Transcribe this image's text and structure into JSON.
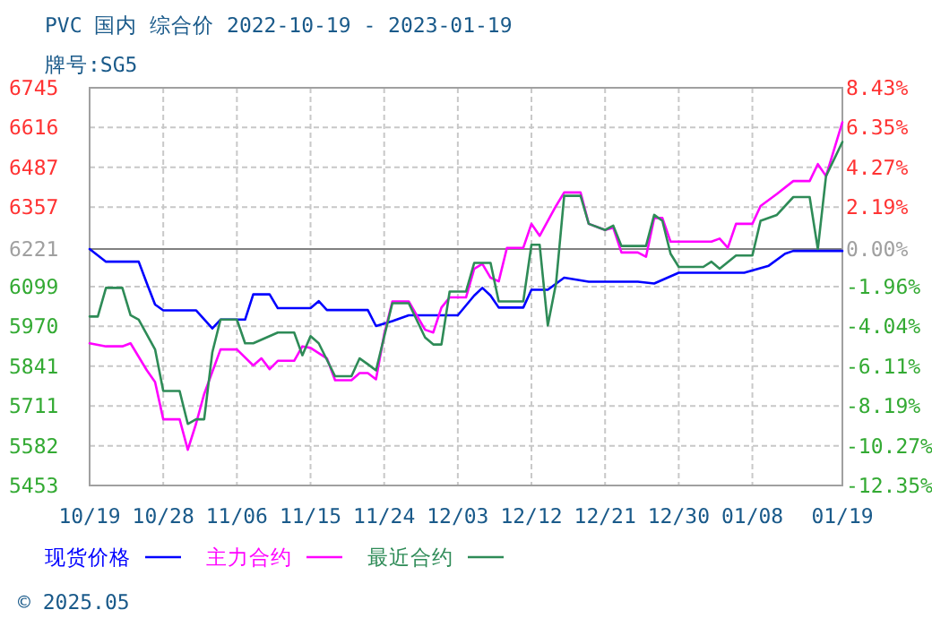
{
  "chart_data": {
    "type": "line",
    "title": "PVC 国内 综合价 2022-10-19 - 2023-01-19",
    "subtitle": "牌号:SG5",
    "annotations": [
      "© 2025.05"
    ],
    "xlim": [
      "2022-10-19",
      "2023-01-19"
    ],
    "xticks": [
      {
        "value": "2022-10-19",
        "label": "10/19"
      },
      {
        "value": "2022-10-28",
        "label": "10/28"
      },
      {
        "value": "2022-11-06",
        "label": "11/06"
      },
      {
        "value": "2022-11-15",
        "label": "11/15"
      },
      {
        "value": "2022-11-24",
        "label": "11/24"
      },
      {
        "value": "2022-12-03",
        "label": "12/03"
      },
      {
        "value": "2022-12-12",
        "label": "12/12"
      },
      {
        "value": "2022-12-21",
        "label": "12/21"
      },
      {
        "value": "2022-12-30",
        "label": "12/30"
      },
      {
        "value": "2023-01-08",
        "label": "01/08"
      },
      {
        "value": "2023-01-19",
        "label": "01/19"
      }
    ],
    "ylim": [
      5453,
      6745
    ],
    "yticks": [
      5453,
      5582,
      5711,
      5841,
      5970,
      6099,
      6221,
      6357,
      6487,
      6616,
      6745
    ],
    "y2lim": [
      -12.35,
      8.43
    ],
    "y2ticks": [
      {
        "value": -12.35,
        "label": "-12.35%"
      },
      {
        "value": -10.27,
        "label": "-10.27%"
      },
      {
        "value": -8.19,
        "label": "-8.19%"
      },
      {
        "value": -6.11,
        "label": "-6.11%"
      },
      {
        "value": -4.04,
        "label": "-4.04%"
      },
      {
        "value": -1.96,
        "label": "-1.96%"
      },
      {
        "value": 0,
        "label": "0.00%"
      },
      {
        "value": 2.19,
        "label": "2.19%"
      },
      {
        "value": 4.27,
        "label": "4.27%"
      },
      {
        "value": 6.35,
        "label": "6.35%"
      },
      {
        "value": 8.43,
        "label": "8.43%"
      }
    ],
    "grid": true,
    "legend": "bottom",
    "ref_lines": [
      {
        "axis": "y",
        "value": 6221,
        "color": "#808080"
      }
    ],
    "series": [
      {
        "name": "现货价格",
        "color": "#0000ff",
        "x": [
          "2022-10-19",
          "2022-10-21",
          "2022-10-25",
          "2022-10-26",
          "2022-10-27",
          "2022-10-28",
          "2022-11-01",
          "2022-11-03",
          "2022-11-04",
          "2022-11-07",
          "2022-11-08",
          "2022-11-10",
          "2022-11-11",
          "2022-11-15",
          "2022-11-16",
          "2022-11-17",
          "2022-11-22",
          "2022-11-23",
          "2022-11-25",
          "2022-11-27",
          "2022-12-03",
          "2022-12-05",
          "2022-12-06",
          "2022-12-07",
          "2022-12-08",
          "2022-12-11",
          "2022-12-12",
          "2022-12-14",
          "2022-12-16",
          "2022-12-19",
          "2022-12-25",
          "2022-12-27",
          "2022-12-30",
          "2023-01-07",
          "2023-01-10",
          "2023-01-12",
          "2023-01-13",
          "2023-01-19"
        ],
        "values": [
          6221,
          6180,
          6180,
          6109,
          6041,
          6022,
          6022,
          5963,
          5992,
          5992,
          6074,
          6074,
          6029,
          6029,
          6052,
          6023,
          6023,
          5971,
          5987,
          6006,
          6006,
          6070,
          6095,
          6070,
          6031,
          6031,
          6089,
          6089,
          6128,
          6115,
          6115,
          6109,
          6144,
          6144,
          6167,
          6206,
          6215,
          6215
        ]
      },
      {
        "name": "主力合约",
        "color": "#ff00ff",
        "x": [
          "2022-10-19",
          "2022-10-21",
          "2022-10-23",
          "2022-10-24",
          "2022-10-26",
          "2022-10-27",
          "2022-10-28",
          "2022-10-30",
          "2022-10-31",
          "2022-11-01",
          "2022-11-02",
          "2022-11-04",
          "2022-11-06",
          "2022-11-08",
          "2022-11-09",
          "2022-11-10",
          "2022-11-11",
          "2022-11-13",
          "2022-11-14",
          "2022-11-15",
          "2022-11-17",
          "2022-11-18",
          "2022-11-20",
          "2022-11-21",
          "2022-11-22",
          "2022-11-23",
          "2022-11-24",
          "2022-11-25",
          "2022-11-27",
          "2022-11-29",
          "2022-11-30",
          "2022-12-01",
          "2022-12-02",
          "2022-12-04",
          "2022-12-05",
          "2022-12-06",
          "2022-12-07",
          "2022-12-08",
          "2022-12-09",
          "2022-12-11",
          "2022-12-12",
          "2022-12-13",
          "2022-12-15",
          "2022-12-16",
          "2022-12-18",
          "2022-12-19",
          "2022-12-21",
          "2022-12-22",
          "2022-12-23",
          "2022-12-25",
          "2022-12-26",
          "2022-12-27",
          "2022-12-28",
          "2022-12-29",
          "2023-01-03",
          "2023-01-04",
          "2023-01-05",
          "2023-01-06",
          "2023-01-08",
          "2023-01-09",
          "2023-01-11",
          "2023-01-13",
          "2023-01-15",
          "2023-01-16",
          "2023-01-17",
          "2023-01-19"
        ],
        "values": [
          5915,
          5905,
          5905,
          5915,
          5827,
          5789,
          5668,
          5668,
          5569,
          5653,
          5750,
          5895,
          5895,
          5843,
          5866,
          5831,
          5858,
          5858,
          5905,
          5900,
          5866,
          5795,
          5795,
          5818,
          5818,
          5798,
          5944,
          6051,
          6051,
          5959,
          5950,
          6031,
          6064,
          6064,
          6157,
          6173,
          6128,
          6116,
          6225,
          6225,
          6303,
          6264,
          6361,
          6405,
          6405,
          6303,
          6283,
          6290,
          6210,
          6210,
          6196,
          6322,
          6322,
          6245,
          6245,
          6255,
          6225,
          6303,
          6303,
          6361,
          6400,
          6442,
          6442,
          6497,
          6458,
          6633
        ]
      },
      {
        "name": "最近合约",
        "color": "#2e8b57",
        "x": [
          "2022-10-19",
          "2022-10-20",
          "2022-10-21",
          "2022-10-23",
          "2022-10-24",
          "2022-10-25",
          "2022-10-27",
          "2022-10-28",
          "2022-10-30",
          "2022-10-31",
          "2022-11-01",
          "2022-11-02",
          "2022-11-03",
          "2022-11-04",
          "2022-11-06",
          "2022-11-07",
          "2022-11-08",
          "2022-11-11",
          "2022-11-13",
          "2022-11-14",
          "2022-11-15",
          "2022-11-16",
          "2022-11-18",
          "2022-11-20",
          "2022-11-21",
          "2022-11-22",
          "2022-11-23",
          "2022-11-25",
          "2022-11-27",
          "2022-11-29",
          "2022-11-30",
          "2022-12-01",
          "2022-12-02",
          "2022-12-04",
          "2022-12-05",
          "2022-12-07",
          "2022-12-08",
          "2022-12-11",
          "2022-12-12",
          "2022-12-13",
          "2022-12-14",
          "2022-12-15",
          "2022-12-16",
          "2022-12-18",
          "2022-12-19",
          "2022-12-21",
          "2022-12-22",
          "2022-12-23",
          "2022-12-26",
          "2022-12-27",
          "2022-12-28",
          "2022-12-29",
          "2022-12-30",
          "2023-01-02",
          "2023-01-03",
          "2023-01-04",
          "2023-01-06",
          "2023-01-08",
          "2023-01-09",
          "2023-01-11",
          "2023-01-13",
          "2023-01-15",
          "2023-01-16",
          "2023-01-17",
          "2023-01-19"
        ],
        "values": [
          6002,
          6002,
          6095,
          6095,
          6006,
          5992,
          5895,
          5760,
          5760,
          5653,
          5668,
          5668,
          5886,
          5992,
          5992,
          5915,
          5915,
          5950,
          5950,
          5876,
          5938,
          5915,
          5808,
          5808,
          5866,
          5847,
          5827,
          6045,
          6045,
          5934,
          5911,
          5911,
          6083,
          6083,
          6176,
          6176,
          6051,
          6051,
          6235,
          6235,
          5973,
          6109,
          6394,
          6394,
          6303,
          6283,
          6297,
          6231,
          6231,
          6332,
          6313,
          6206,
          6163,
          6163,
          6180,
          6157,
          6200,
          6200,
          6313,
          6332,
          6390,
          6390,
          6221,
          6458,
          6569
        ]
      }
    ]
  }
}
